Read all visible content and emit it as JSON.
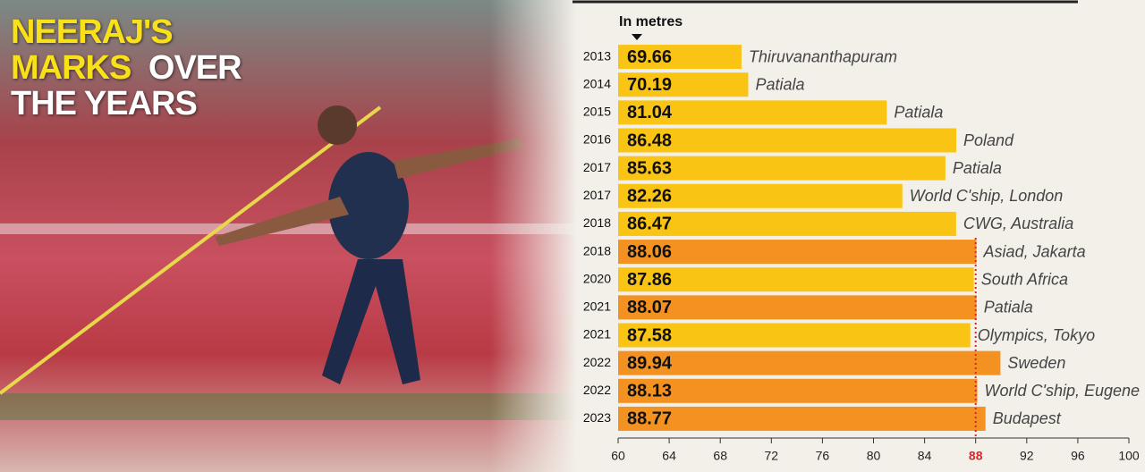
{
  "chart_data": {
    "type": "hbar",
    "title": [
      {
        "text": "NEERAJ'S",
        "color": "#f9e11a"
      },
      {
        "text": "MARKS",
        "color": "#f9e11a"
      },
      {
        "text": "OVER",
        "color": "#ffffff"
      },
      {
        "text": "THE YEARS",
        "color": "#ffffff"
      }
    ],
    "subtitle": "In metres",
    "categories": [
      "2013",
      "2014",
      "2015",
      "2016",
      "2017",
      "2017",
      "2018",
      "2018",
      "2020",
      "2021",
      "2021",
      "2022",
      "2022",
      "2023"
    ],
    "values": [
      69.66,
      70.19,
      81.04,
      86.48,
      85.63,
      82.26,
      86.47,
      88.06,
      87.86,
      88.07,
      87.58,
      89.94,
      88.13,
      88.77
    ],
    "annotations": [
      "Thiruvananthapuram",
      "Patiala",
      "Patiala",
      "Poland",
      "Patiala",
      "World C'ship, London",
      "CWG, Australia",
      "Asiad, Jakarta",
      "South Africa",
      "Patiala",
      "Olympics, Tokyo",
      "Sweden",
      "World C'ship, Eugene",
      "Budapest"
    ],
    "colors": [
      "#f9c414",
      "#f9c414",
      "#f9c414",
      "#f9c414",
      "#f9c414",
      "#f9c414",
      "#f9c414",
      "#f39221",
      "#f9c414",
      "#f39221",
      "#f9c414",
      "#f39221",
      "#f39221",
      "#f39221"
    ],
    "xlim": [
      60,
      100
    ],
    "xticks": [
      60,
      64,
      68,
      72,
      76,
      80,
      84,
      88,
      92,
      96,
      100
    ],
    "reference_line": {
      "value": 88,
      "color": "#d7262e"
    }
  }
}
